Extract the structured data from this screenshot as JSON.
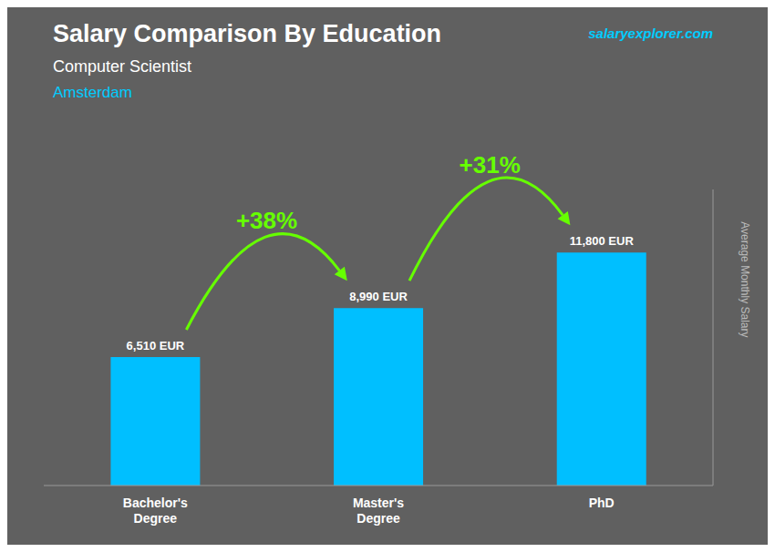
{
  "chart_data": {
    "type": "bar",
    "title": "Salary Comparison By Education",
    "subtitle": [
      "Computer Scientist",
      "Amsterdam"
    ],
    "source": "salaryexplorer.com",
    "ylabel": "Average Monthly Salary",
    "categories": [
      "Bachelor's\nDegree",
      "Master's\nDegree",
      "PhD"
    ],
    "values": [
      6510,
      8990,
      11800
    ],
    "value_labels": [
      "6,510 EUR",
      "8,990 EUR",
      "11,800 EUR"
    ],
    "data_labels": true,
    "color": "#00BFFF",
    "ylim": [
      0,
      15000
    ],
    "grid": false,
    "tick_labels": "x",
    "annotations": [
      "+38%",
      "+31%"
    ]
  }
}
